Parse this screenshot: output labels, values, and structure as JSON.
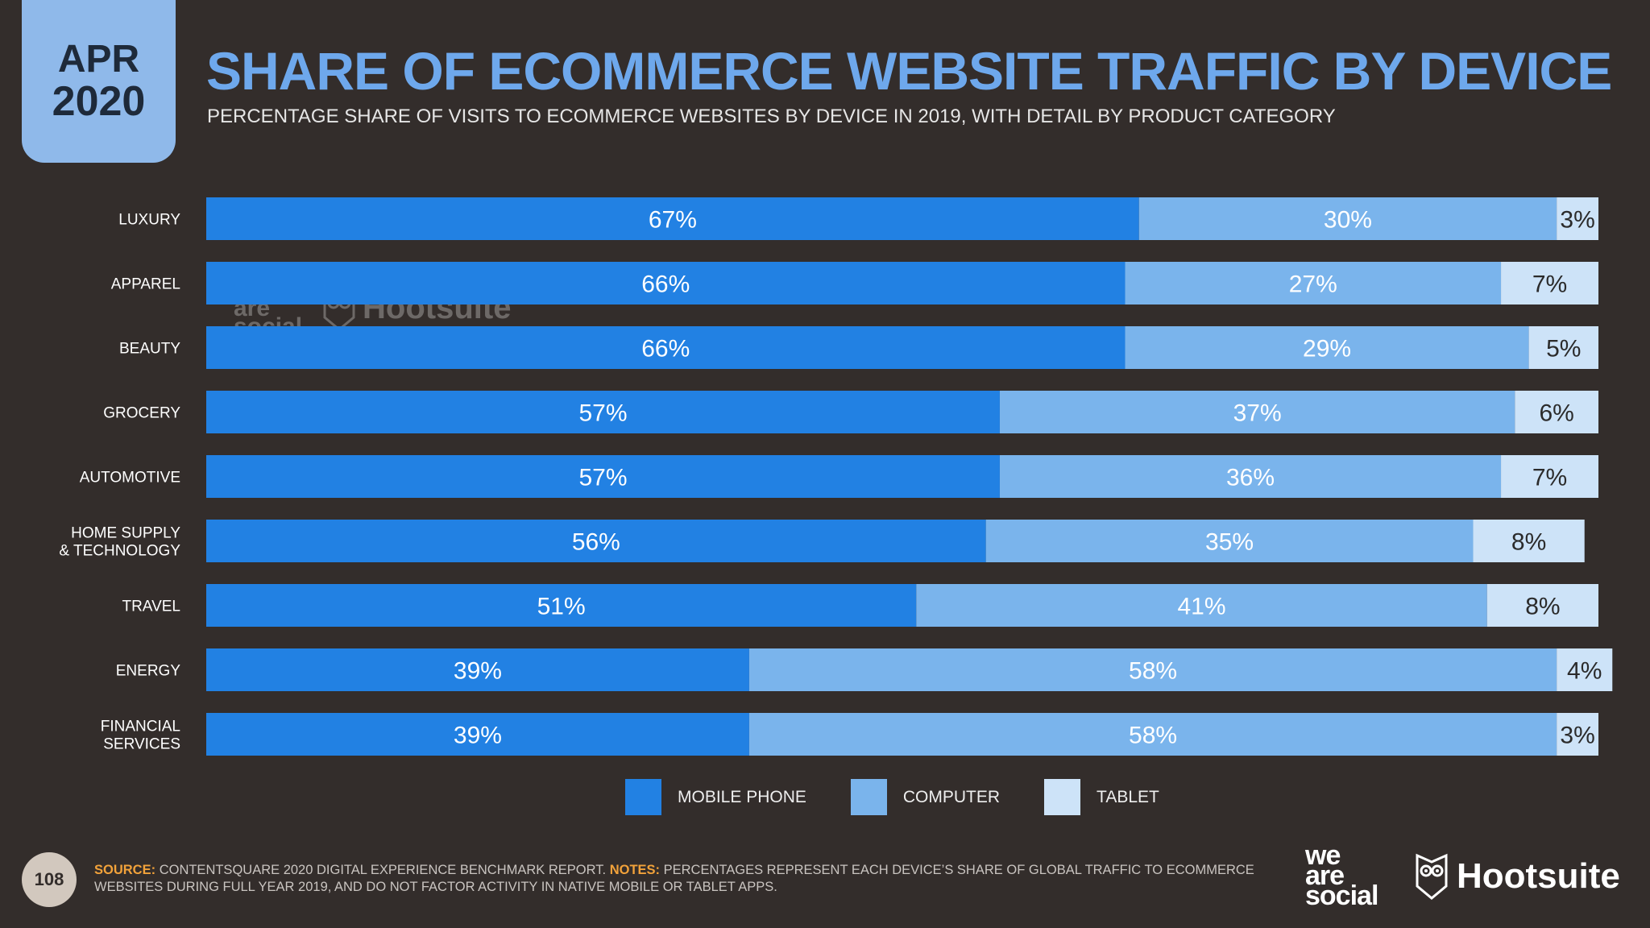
{
  "header": {
    "badge_month": "APR",
    "badge_year": "2020",
    "title": "SHARE OF ECOMMERCE WEBSITE TRAFFIC BY DEVICE",
    "subtitle": "PERCENTAGE SHARE OF VISITS TO ECOMMERCE WEBSITES BY DEVICE IN 2019, WITH DETAIL BY PRODUCT CATEGORY"
  },
  "chart_data": {
    "type": "bar",
    "orientation": "horizontal",
    "stacked": true,
    "categories": [
      [
        "LUXURY"
      ],
      [
        "APPAREL"
      ],
      [
        "BEAUTY"
      ],
      [
        "GROCERY"
      ],
      [
        "AUTOMOTIVE"
      ],
      [
        "HOME SUPPLY",
        "& TECHNOLOGY"
      ],
      [
        "TRAVEL"
      ],
      [
        "ENERGY"
      ],
      [
        "FINANCIAL",
        "SERVICES"
      ]
    ],
    "series": [
      {
        "name": "MOBILE PHONE",
        "color": "#2281e3",
        "text_color": "#ffffff",
        "values": [
          67,
          66,
          66,
          57,
          57,
          56,
          51,
          39,
          39
        ]
      },
      {
        "name": "COMPUTER",
        "color": "#7ab4ec",
        "text_color": "#ffffff",
        "values": [
          30,
          27,
          29,
          37,
          36,
          35,
          41,
          58,
          58
        ]
      },
      {
        "name": "TABLET",
        "color": "#cde3f8",
        "text_color": "#2b2b2b",
        "values": [
          3,
          7,
          5,
          6,
          7,
          8,
          8,
          4,
          3
        ]
      }
    ],
    "value_suffix": "%",
    "xlim": [
      0,
      100
    ],
    "grid": false,
    "legend_position": "bottom"
  },
  "legend": {
    "items": [
      {
        "label": "MOBILE PHONE",
        "color": "#2281e3"
      },
      {
        "label": "COMPUTER",
        "color": "#7ab4ec"
      },
      {
        "label": "TABLET",
        "color": "#cde3f8"
      }
    ]
  },
  "footer": {
    "page_number": "108",
    "source_label": "SOURCE:",
    "source_text": "CONTENTSQUARE 2020 DIGITAL EXPERIENCE BENCHMARK REPORT.",
    "notes_label": "NOTES:",
    "notes_text": "PERCENTAGES REPRESENT EACH DEVICE’S SHARE OF GLOBAL TRAFFIC TO ECOMMERCE WEBSITES DURING FULL YEAR 2019, AND DO NOT FACTOR ACTIVITY IN NATIVE MOBILE OR TABLET APPS.",
    "logo_was_line1": "we",
    "logo_was_line2": "are",
    "logo_was_line3": "social",
    "logo_hootsuite": "Hootsuite"
  },
  "icons": {
    "hootsuite_logo": "owl-icon"
  }
}
